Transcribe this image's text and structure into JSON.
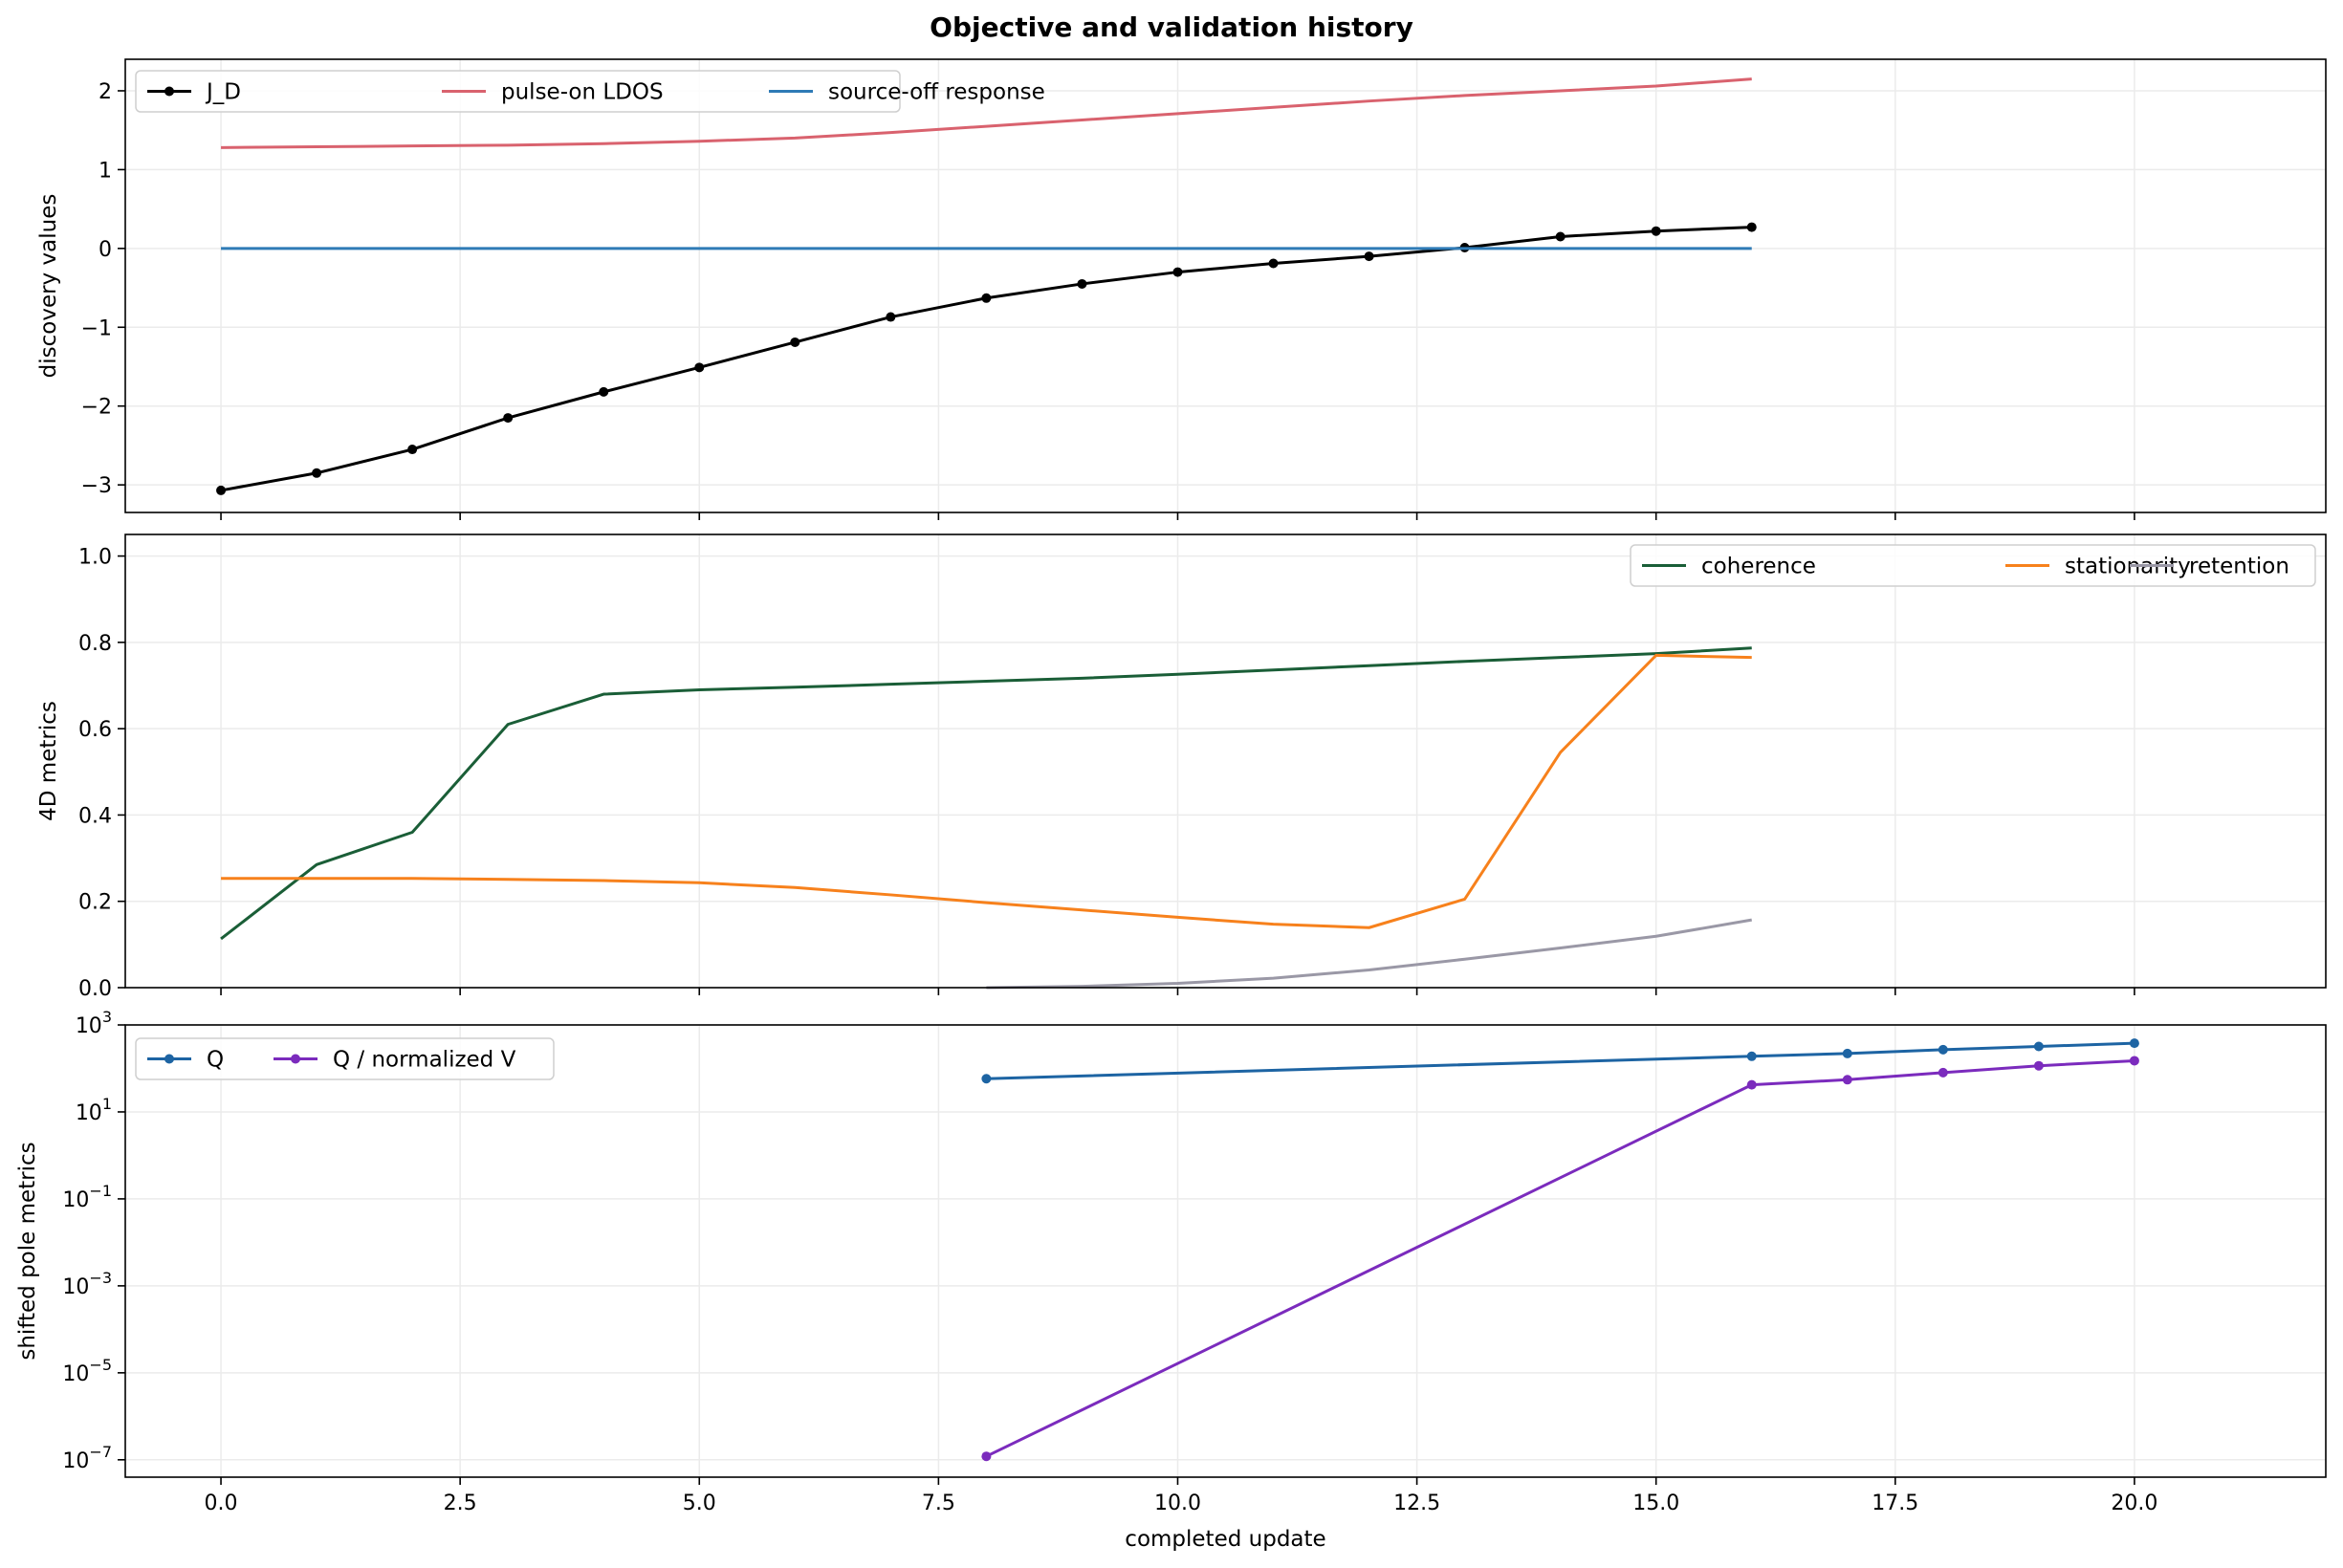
{
  "figure": {
    "title": "Objective and validation history"
  },
  "chart_data": [
    {
      "type": "line",
      "ylabel": "discovery values",
      "xlabel": "",
      "xlim": [
        -1,
        22
      ],
      "ylim": [
        -3.35,
        2.4
      ],
      "xticks": [
        0.0,
        2.5,
        5.0,
        7.5,
        10.0,
        12.5,
        15.0,
        17.5,
        20.0
      ],
      "yticks": [
        {
          "v": -3,
          "label": "−3"
        },
        {
          "v": -2,
          "label": "−2"
        },
        {
          "v": -1,
          "label": "−1"
        },
        {
          "v": 0,
          "label": "0"
        },
        {
          "v": 1,
          "label": "1"
        },
        {
          "v": 2,
          "label": "2"
        }
      ],
      "grid": true,
      "legend": "top-left",
      "series": [
        {
          "name": "J_D",
          "color": "#000000",
          "markers": true,
          "x": [
            0,
            1,
            2,
            3,
            4,
            5,
            6,
            7,
            8,
            9,
            10,
            11,
            12,
            13,
            14,
            15,
            16
          ],
          "y": [
            -3.07,
            -2.85,
            -2.55,
            -2.15,
            -1.82,
            -1.51,
            -1.19,
            -0.87,
            -0.63,
            -0.45,
            -0.3,
            -0.19,
            -0.1,
            0.01,
            0.15,
            0.22,
            0.27
          ]
        },
        {
          "name": "pulse-on LDOS",
          "color": "#d9626e",
          "markers": false,
          "x": [
            0,
            1,
            2,
            3,
            4,
            5,
            6,
            7,
            8,
            9,
            10,
            11,
            12,
            13,
            14,
            15,
            16
          ],
          "y": [
            1.28,
            1.29,
            1.3,
            1.31,
            1.33,
            1.36,
            1.4,
            1.47,
            1.55,
            1.63,
            1.71,
            1.79,
            1.87,
            1.94,
            2.0,
            2.06,
            2.15
          ]
        },
        {
          "name": "source-off response",
          "color": "#2f7bb6",
          "markers": false,
          "x": [
            0,
            1,
            2,
            3,
            4,
            5,
            6,
            7,
            8,
            9,
            10,
            11,
            12,
            13,
            14,
            15,
            16
          ],
          "y": [
            0,
            0,
            0,
            0,
            0,
            0,
            0,
            0,
            0,
            0,
            0,
            0,
            0,
            0,
            0,
            0,
            0
          ]
        }
      ]
    },
    {
      "type": "line",
      "ylabel": "4D metrics",
      "xlabel": "",
      "xlim": [
        -1,
        22
      ],
      "ylim": [
        0.0,
        1.05
      ],
      "xticks": [
        0.0,
        2.5,
        5.0,
        7.5,
        10.0,
        12.5,
        15.0,
        17.5,
        20.0
      ],
      "yticks": [
        {
          "v": 0.0,
          "label": "0.0"
        },
        {
          "v": 0.2,
          "label": "0.2"
        },
        {
          "v": 0.4,
          "label": "0.4"
        },
        {
          "v": 0.6,
          "label": "0.6"
        },
        {
          "v": 0.8,
          "label": "0.8"
        },
        {
          "v": 1.0,
          "label": "1.0"
        }
      ],
      "grid": true,
      "legend": "top-right",
      "series": [
        {
          "name": "coherence",
          "color": "#1a5e37",
          "markers": false,
          "x": [
            0,
            1,
            2,
            3,
            4,
            5,
            6,
            7,
            8,
            9,
            10,
            11,
            12,
            13,
            14,
            15,
            16
          ],
          "y": [
            0.113,
            0.285,
            0.36,
            0.61,
            0.68,
            0.69,
            0.696,
            0.703,
            0.71,
            0.717,
            0.726,
            0.736,
            0.746,
            0.756,
            0.765,
            0.774,
            0.787
          ]
        },
        {
          "name": "stationarity",
          "color": "#f7811c",
          "markers": false,
          "x": [
            0,
            1,
            2,
            3,
            4,
            5,
            6,
            7,
            8,
            9,
            10,
            11,
            12,
            13,
            14,
            15,
            16
          ],
          "y": [
            0.253,
            0.253,
            0.253,
            0.251,
            0.248,
            0.243,
            0.232,
            0.215,
            0.197,
            0.18,
            0.163,
            0.147,
            0.139,
            0.205,
            0.545,
            0.77,
            0.765
          ]
        },
        {
          "name": "retention",
          "color": "#9a98a6",
          "markers": false,
          "x": [
            8,
            9,
            10,
            11,
            12,
            13,
            14,
            15,
            16
          ],
          "y": [
            0.0,
            0.003,
            0.01,
            0.022,
            0.041,
            0.066,
            0.092,
            0.119,
            0.157
          ]
        }
      ]
    },
    {
      "type": "line",
      "ylabel": "shifted pole metrics",
      "xlabel": "completed update",
      "xlim": [
        -1,
        22
      ],
      "yscale": "log",
      "ylim_log10": [
        -7.4,
        3.0
      ],
      "xticks": [
        0.0,
        2.5,
        5.0,
        7.5,
        10.0,
        12.5,
        15.0,
        17.5,
        20.0
      ],
      "yticks": [
        {
          "v": -7,
          "base": "10",
          "exp": "−7"
        },
        {
          "v": -5,
          "base": "10",
          "exp": "−5"
        },
        {
          "v": -3,
          "base": "10",
          "exp": "−3"
        },
        {
          "v": -1,
          "base": "10",
          "exp": "−1"
        },
        {
          "v": 1,
          "base": "10",
          "exp": "1"
        },
        {
          "v": 3,
          "base": "10",
          "exp": "3"
        }
      ],
      "grid": true,
      "legend": "top-left",
      "series": [
        {
          "name": "Q",
          "color": "#1d64a3",
          "markers": true,
          "x": [
            8,
            16,
            17,
            18,
            19,
            20
          ],
          "y": [
            58,
            190,
            220,
            270,
            320,
            380
          ]
        },
        {
          "name": "Q / normalized V",
          "color": "#7b2bbd",
          "markers": true,
          "x": [
            8,
            16,
            17,
            18,
            19,
            20
          ],
          "y": [
            1.2e-07,
            42,
            55,
            80,
            115,
            150
          ]
        }
      ]
    }
  ]
}
